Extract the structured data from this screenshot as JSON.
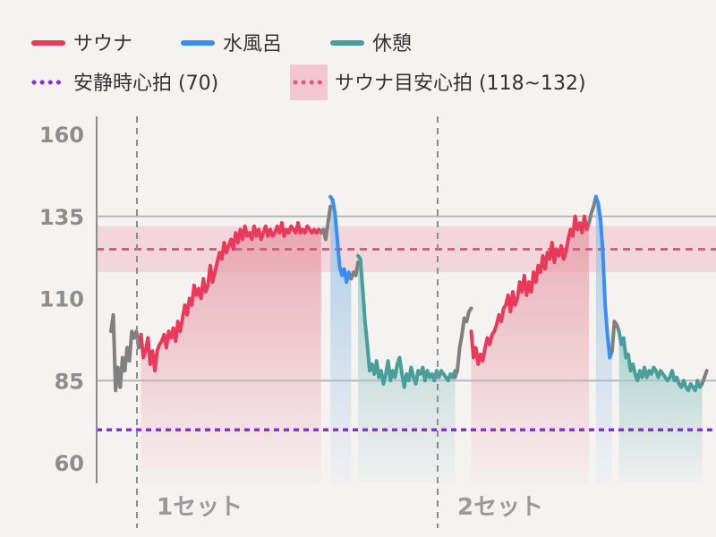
{
  "legend": [
    {
      "key": "sauna",
      "label": "サウナ",
      "color": "#e83a5a",
      "style": "solid"
    },
    {
      "key": "cold",
      "label": "水風呂",
      "color": "#3b8ef0",
      "style": "solid"
    },
    {
      "key": "rest",
      "label": "休憩",
      "color": "#4a9e9a",
      "style": "solid"
    },
    {
      "key": "resting_hr",
      "label": "安静時心拍 (70)",
      "color": "#8a2be2",
      "style": "dotted"
    },
    {
      "key": "target_hr",
      "label": "サウナ目安心拍 (118~132)",
      "color": "#e05a80",
      "style": "dotted-band"
    }
  ],
  "chart_data": {
    "type": "line",
    "title": "",
    "xlabel": "",
    "ylabel": "",
    "ylim": [
      55,
      162
    ],
    "y_ticks": [
      60,
      85,
      110,
      135,
      160
    ],
    "grid": true,
    "legend_position": "top-left",
    "resting_hr": 70,
    "target_band": [
      118,
      132
    ],
    "target_line": 125,
    "set_labels": [
      "1セット",
      "2セット"
    ],
    "series": [
      {
        "name": "",
        "phase": "transition",
        "color": "#808080",
        "x": [
          0,
          2,
          4,
          6,
          8,
          10,
          12,
          14,
          16,
          18,
          20,
          22,
          24,
          26
        ],
        "y": [
          100,
          105,
          82,
          89,
          83,
          92,
          88,
          95,
          91,
          100,
          98,
          100,
          95,
          99
        ]
      },
      {
        "name": "サウナ",
        "phase": "sauna",
        "color": "#e83a5a",
        "x": [
          26,
          28,
          30,
          32,
          34,
          36,
          38,
          40,
          42,
          44,
          46,
          48,
          50,
          52,
          54,
          56,
          58,
          60,
          62,
          64,
          66,
          68,
          70,
          72,
          74,
          76,
          78,
          80,
          82,
          84,
          86,
          88,
          90,
          92,
          94,
          96,
          98,
          100,
          102,
          104,
          106,
          108,
          110,
          112,
          114,
          116,
          118,
          120,
          122,
          124,
          126,
          128,
          130,
          132,
          134,
          136,
          138,
          140,
          142,
          144,
          146,
          148,
          150,
          152,
          154,
          156,
          158,
          160,
          162,
          164,
          166,
          168,
          170,
          172,
          174,
          176,
          178,
          180,
          182
        ],
        "y": [
          99,
          92,
          94,
          98,
          90,
          94,
          88,
          94,
          96,
          97,
          99,
          95,
          100,
          98,
          101,
          97,
          103,
          100,
          104,
          108,
          105,
          110,
          108,
          114,
          111,
          113,
          110,
          116,
          112,
          114,
          120,
          115,
          118,
          121,
          124,
          122,
          127,
          124,
          126,
          128,
          125,
          130,
          127,
          131,
          128,
          132,
          129,
          130,
          128,
          132,
          129,
          131,
          128,
          130,
          132,
          129,
          131,
          129,
          130,
          132,
          130,
          133,
          129,
          131,
          130,
          132,
          131,
          130,
          133,
          130,
          131,
          130,
          132,
          131,
          130,
          131,
          130,
          131,
          130
        ]
      },
      {
        "name": "",
        "phase": "transition",
        "color": "#808080",
        "x": [
          182,
          184,
          186,
          188,
          190
        ],
        "y": [
          130,
          131,
          128,
          133,
          138
        ]
      },
      {
        "name": "水風呂",
        "phase": "cold",
        "color": "#3b8ef0",
        "x": [
          190,
          192,
          194,
          196,
          198,
          200,
          202,
          204,
          206,
          208
        ],
        "y": [
          141,
          140,
          136,
          128,
          120,
          117,
          119,
          115,
          118,
          116
        ]
      },
      {
        "name": "",
        "phase": "transition",
        "color": "#808080",
        "x": [
          208,
          210,
          212,
          214
        ],
        "y": [
          116,
          118,
          117,
          121
        ]
      },
      {
        "name": "休憩",
        "phase": "rest",
        "color": "#4a9e9a",
        "x": [
          214,
          216,
          218,
          220,
          222,
          224,
          226,
          228,
          230,
          232,
          234,
          236,
          238,
          240,
          242,
          244,
          246,
          248,
          250,
          252,
          254,
          256,
          258,
          260,
          262,
          264,
          266,
          268,
          270,
          272,
          274,
          276,
          278,
          280,
          282,
          284,
          286,
          288,
          290,
          292,
          294,
          296,
          298
        ],
        "y": [
          123,
          122,
          113,
          103,
          96,
          88,
          90,
          87,
          91,
          86,
          88,
          84,
          87,
          91,
          85,
          88,
          86,
          90,
          92,
          87,
          83,
          87,
          85,
          89,
          86,
          84,
          88,
          87,
          89,
          85,
          88,
          86,
          87,
          85,
          88,
          86,
          88,
          87,
          86,
          85,
          87,
          86,
          88
        ]
      },
      {
        "name": "",
        "phase": "transition",
        "color": "#808080",
        "x": [
          298,
          300,
          302,
          304,
          306,
          308,
          310,
          312
        ],
        "y": [
          86,
          88,
          95,
          99,
          104,
          103,
          106,
          107
        ]
      },
      {
        "name": "サウナ",
        "phase": "sauna",
        "color": "#e83a5a",
        "x": [
          312,
          314,
          316,
          318,
          320,
          322,
          324,
          326,
          328,
          330,
          332,
          334,
          336,
          338,
          340,
          342,
          344,
          346,
          348,
          350,
          352,
          354,
          356,
          358,
          360,
          362,
          364,
          366,
          368,
          370,
          372,
          374,
          376,
          378,
          380,
          382,
          384,
          386,
          388,
          390,
          392,
          394,
          396,
          398,
          400,
          402,
          404,
          406,
          408,
          410,
          412,
          414
        ],
        "y": [
          100,
          92,
          95,
          90,
          93,
          91,
          95,
          98,
          96,
          99,
          100,
          102,
          105,
          103,
          107,
          108,
          111,
          106,
          112,
          108,
          110,
          115,
          112,
          117,
          111,
          115,
          112,
          118,
          115,
          120,
          118,
          123,
          119,
          124,
          122,
          127,
          121,
          125,
          123,
          126,
          122,
          124,
          128,
          131,
          129,
          135,
          131,
          133,
          130,
          135,
          131,
          133
        ]
      },
      {
        "name": "",
        "phase": "transition",
        "color": "#808080",
        "x": [
          414,
          416,
          418,
          420
        ],
        "y": [
          133,
          136,
          138,
          141
        ]
      },
      {
        "name": "水風呂",
        "phase": "cold",
        "color": "#3b8ef0",
        "x": [
          420,
          422,
          424,
          426,
          428,
          430,
          432,
          434
        ],
        "y": [
          141,
          139,
          134,
          124,
          108,
          99,
          92,
          94
        ]
      },
      {
        "name": "",
        "phase": "transition",
        "color": "#808080",
        "x": [
          434,
          436,
          438,
          440
        ],
        "y": [
          94,
          103,
          102,
          100
        ]
      },
      {
        "name": "休憩",
        "phase": "rest",
        "color": "#4a9e9a",
        "x": [
          440,
          442,
          444,
          446,
          448,
          450,
          452,
          454,
          456,
          458,
          460,
          462,
          464,
          466,
          468,
          470,
          472,
          474,
          476,
          478,
          480,
          482,
          484,
          486,
          488,
          490,
          492,
          494,
          496,
          498,
          500,
          502,
          504,
          506,
          508,
          510,
          512
        ],
        "y": [
          100,
          96,
          98,
          92,
          93,
          88,
          90,
          87,
          85,
          88,
          86,
          89,
          86,
          88,
          87,
          89,
          88,
          86,
          88,
          87,
          86,
          85,
          86,
          88,
          85,
          86,
          84,
          83,
          85,
          83,
          82,
          84,
          83,
          82,
          85,
          83,
          84
        ]
      },
      {
        "name": "",
        "phase": "transition",
        "color": "#808080",
        "x": [
          512,
          514,
          516
        ],
        "y": [
          84,
          86,
          88
        ]
      }
    ]
  }
}
